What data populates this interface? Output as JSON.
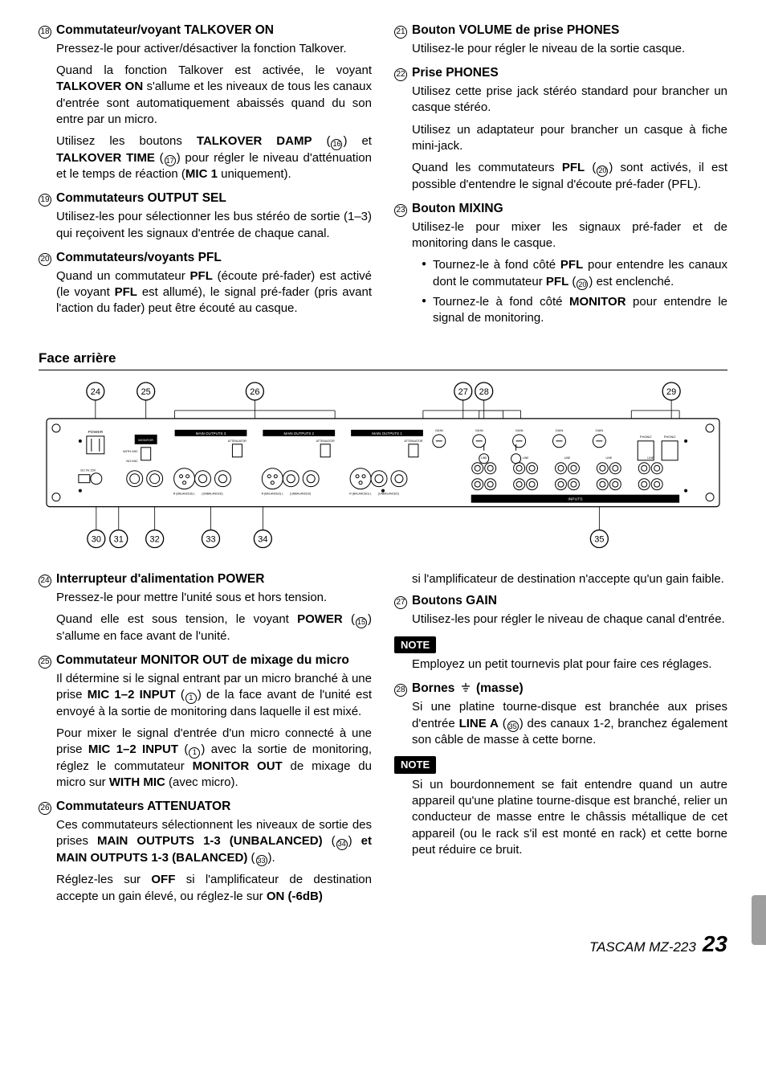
{
  "top_left": [
    {
      "num": "18",
      "title": "Commutateur/voyant TALKOVER ON",
      "paras": [
        "Pressez-le pour activer/désactiver la fonction Talkover.",
        "Quand la fonction Talkover est activée, le voyant <b>TALKOVER ON</b> s'allume et les niveaux de tous les canaux d'entrée sont automatiquement abaissés quand du son entre par un micro.",
        "Utilisez les boutons <b>TALKOVER DAMP</b> (⑯) et <b>TALKOVER TIME</b> (⑰) pour régler le niveau d'atténuation et le temps de réaction (<b>MIC 1</b> uniquement)."
      ],
      "refs": {
        "16": "16",
        "17": "17"
      }
    },
    {
      "num": "19",
      "title": "Commutateurs OUTPUT SEL",
      "paras": [
        "Utilisez-les pour sélectionner les bus stéréo de sortie (1–3) qui reçoivent les signaux d'entrée de chaque canal."
      ]
    },
    {
      "num": "20",
      "title": "Commutateurs/voyants PFL",
      "paras": [
        "Quand un commutateur <b>PFL</b> (écoute pré-fader) est activé (le voyant <b>PFL</b> est allumé), le signal pré-fader (pris avant l'action du fader) peut être écouté au casque."
      ]
    }
  ],
  "top_right": [
    {
      "num": "21",
      "title": "Bouton VOLUME de prise PHONES",
      "paras": [
        "Utilisez-le pour régler le niveau de la sortie casque."
      ]
    },
    {
      "num": "22",
      "title": "Prise PHONES",
      "paras": [
        "Utilisez cette prise jack stéréo standard pour brancher un casque stéréo.",
        "Utilisez un adaptateur pour brancher un casque à fiche mini-jack.",
        "Quand les commutateurs <b>PFL</b> (⑳) sont activés, il est possible d'entendre le signal d'écoute pré-fader (PFL)."
      ],
      "refs": {
        "20": "20"
      }
    },
    {
      "num": "23",
      "title": "Bouton MIXING",
      "paras": [
        "Utilisez-le pour mixer les signaux pré-fader et de monitoring dans le casque."
      ],
      "bullets": [
        "Tournez-le à fond côté <b>PFL</b> pour entendre les canaux dont le commutateur <b>PFL</b> (⑳) est enclenché.",
        "Tournez-le à fond côté <b>MONITOR</b> pour entendre le signal de monitoring."
      ],
      "refs": {
        "20": "20"
      }
    }
  ],
  "section_title": "Face arrière",
  "diagram": {
    "top_labels": [
      "24",
      "25",
      "26",
      "27",
      "28",
      "29"
    ],
    "bottom_labels": [
      "30",
      "31",
      "32",
      "33",
      "34",
      "35"
    ],
    "panel_text": {
      "power": "POWER",
      "monout": "MONITOR OUT",
      "main3": "MAIN OUTPUTS 3",
      "main2": "MAIN OUTPUTS 2",
      "main1": "MAIN OUTPUTS 1",
      "att": "ATTENUATOR",
      "gain": "GAIN",
      "phono": "PHONO",
      "inputs": "INPUTS",
      "unbal": "(UNBALANCED)",
      "bal": "(BALANCED)",
      "line": "LINE",
      "withmic": "WITH MIC",
      "nomic": "NO MIC"
    }
  },
  "bottom_left": [
    {
      "num": "24",
      "title": "Interrupteur d'alimentation POWER",
      "paras": [
        "Pressez-le pour mettre l'unité sous et hors tension.",
        "Quand elle est sous tension, le voyant <b>POWER</b> (⑮) s'allume en face avant de l'unité."
      ],
      "refs": {
        "15": "15"
      }
    },
    {
      "num": "25",
      "title": "Commutateur MONITOR OUT de mixage du micro",
      "paras": [
        "Il détermine si le signal entrant par un micro branché à une prise <b>MIC 1–2 INPUT</b> (①) de la face avant de l'unité est envoyé à la sortie de monitoring dans laquelle il est mixé.",
        "Pour mixer le signal d'entrée d'un micro connecté à une prise <b>MIC 1–2 INPUT</b> (①) avec la sortie de monitoring, réglez le commutateur <b>MONITOR OUT</b> de mixage du micro sur <b>WITH MIC</b> (avec micro)."
      ],
      "refs": {
        "1": "1"
      }
    },
    {
      "num": "26",
      "title": "Commutateurs ATTENUATOR",
      "paras": [
        "Ces commutateurs sélectionnent les niveaux de sortie des prises <b>MAIN OUTPUTS 1-3 (UNBALANCED)</b> (㉞) <b>et MAIN OUTPUTS 1-3 (BALANCED)</b> (㉝).",
        "Réglez-les sur <b>OFF</b> si l'amplificateur de destination accepte un gain élevé, ou réglez-le sur <b>ON (-6dB)</b>"
      ],
      "refs": {
        "34": "34",
        "33": "33"
      }
    }
  ],
  "bottom_right_intro": "si l'amplificateur de destination n'accepte qu'un gain faible.",
  "bottom_right": [
    {
      "num": "27",
      "title": "Boutons GAIN",
      "paras": [
        "Utilisez-les pour régler le niveau de chaque canal d'entrée."
      ]
    }
  ],
  "note1_label": "NOTE",
  "note1_body": "Employez un petit tournevis plat pour faire ces réglages.",
  "item28": {
    "num": "28",
    "title_prefix": "Bornes",
    "title_suffix": "(masse)",
    "paras": [
      "Si une platine tourne-disque est branchée aux prises d'entrée <b>LINE A</b> (㉟) des canaux 1-2, branchez également son câble de masse à cette borne."
    ],
    "refs": {
      "35": "35"
    }
  },
  "note2_label": "NOTE",
  "note2_body": "Si un bourdonnement se fait entendre quand un autre appareil qu'une platine tourne-disque est branché, relier un conducteur de masse entre le châssis métallique de cet appareil (ou le rack s'il est monté en rack) et cette borne peut réduire ce bruit.",
  "footer_model": "TASCAM MZ-223",
  "footer_page": "23"
}
